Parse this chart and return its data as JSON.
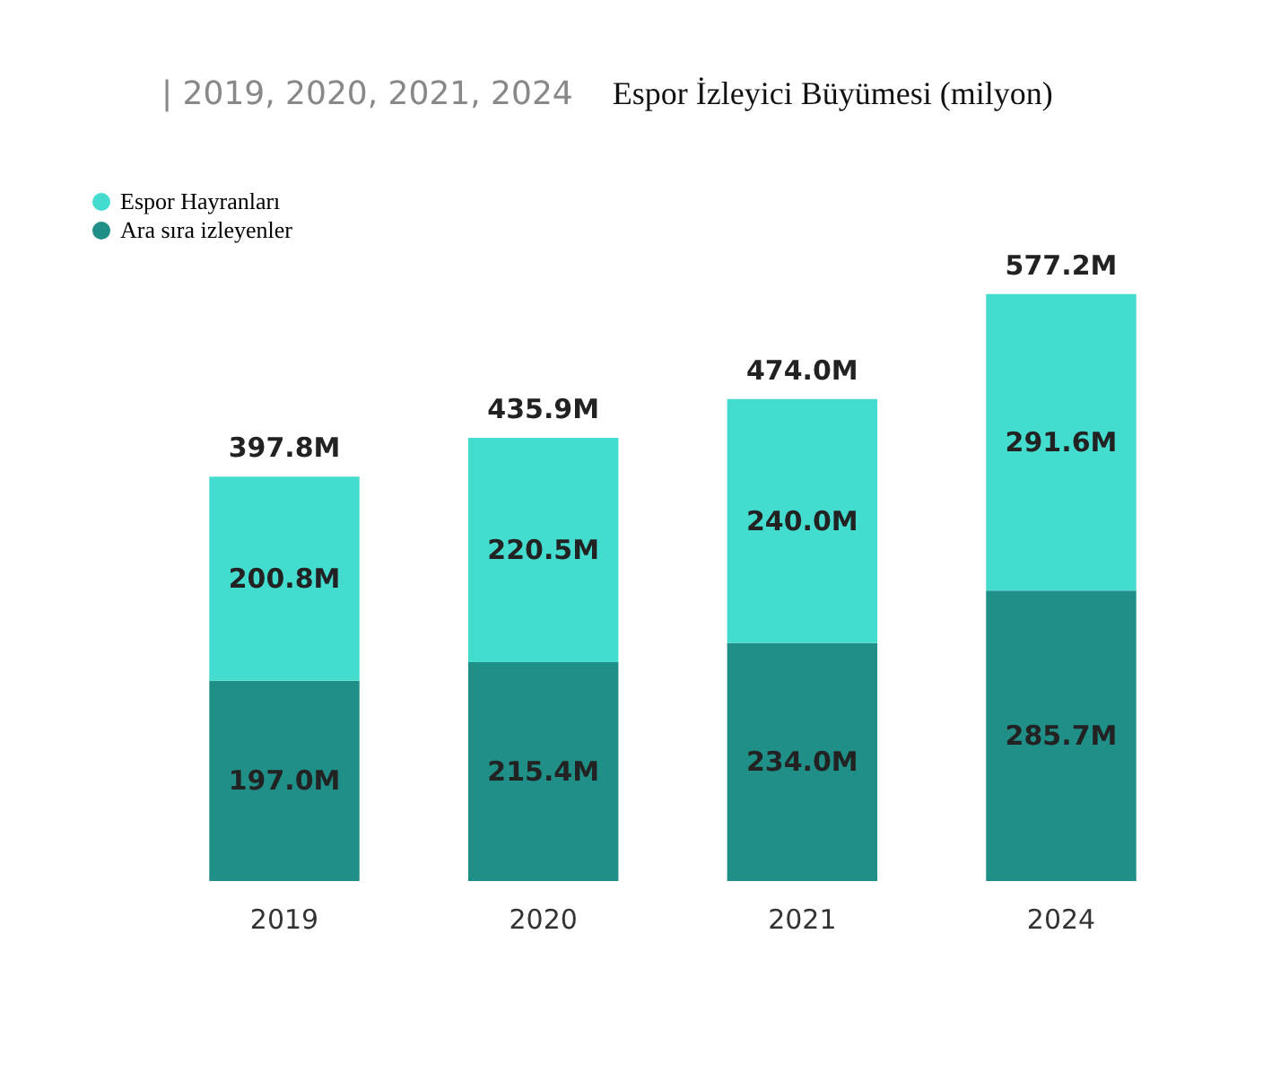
{
  "chart_data": {
    "type": "bar",
    "title": "Espor İzleyici Büyümesi (milyon)",
    "subtitle": "| 2019, 2020, 2021, 2024",
    "categories": [
      "2019",
      "2020",
      "2021",
      "2024"
    ],
    "stacked": true,
    "legend": "top left",
    "series": [
      {
        "name": "Ara sıra izleyenler",
        "color": "#1f8f88",
        "values": [
          197.0,
          215.4,
          234.0,
          285.7
        ],
        "value_labels": [
          "197.0M",
          "215.4M",
          "234.0M",
          "285.7M"
        ]
      },
      {
        "name": "Espor Hayranları",
        "color": "#45dcd0",
        "values": [
          200.8,
          220.5,
          240.0,
          291.6
        ],
        "value_labels": [
          "200.8M",
          "220.5M",
          "240.0M",
          "291.6M"
        ]
      }
    ],
    "totals": [
      "397.8M",
      "435.9M",
      "474.0M",
      "577.2M"
    ]
  }
}
